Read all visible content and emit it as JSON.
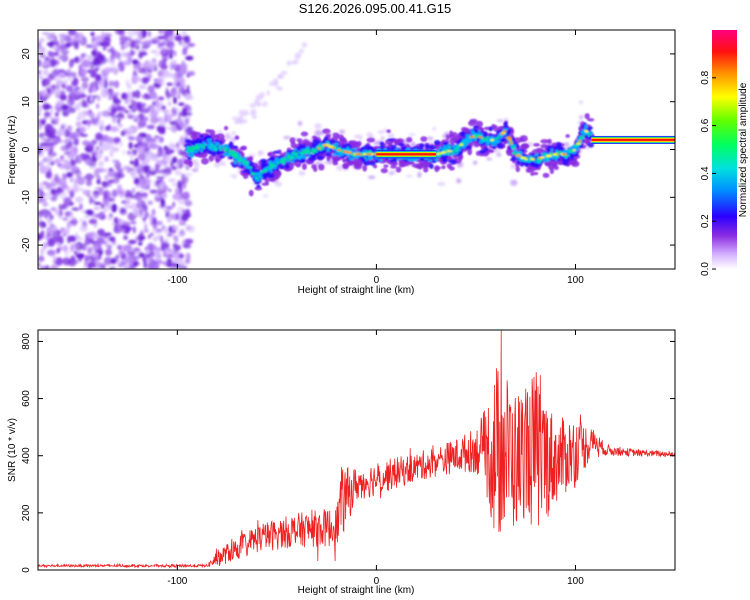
{
  "title": "S126.2026.095.00.41.G15",
  "chart_data": [
    {
      "type": "heatmap",
      "title": "S126.2026.095.00.41.G15",
      "xlabel": "Height of straight line (km)",
      "ylabel": "Frequency (Hz)",
      "xlim": [
        -170,
        150
      ],
      "ylim": [
        -25,
        25
      ],
      "xticks": [
        -100,
        0,
        100
      ],
      "yticks": [
        -20,
        -10,
        0,
        10,
        20
      ],
      "colorbar": {
        "label": "Normalized spectral amplitude",
        "range": [
          0,
          1
        ],
        "ticks": [
          0.0,
          0.2,
          0.4,
          0.6,
          0.8
        ],
        "colormap": "rainbow-white"
      },
      "ridge": {
        "x": [
          -95,
          -85,
          -75,
          -65,
          -60,
          -55,
          -50,
          -40,
          -30,
          -25,
          -20,
          -10,
          0,
          10,
          20,
          30,
          40,
          45,
          50,
          55,
          60,
          65,
          70,
          75,
          80,
          90,
          95,
          100,
          105,
          108,
          110,
          120,
          150
        ],
        "y": [
          0,
          1,
          0,
          -3,
          -6,
          -4,
          -3,
          -1,
          0,
          1,
          0,
          -1,
          -1,
          -1,
          -1,
          -1,
          0,
          2,
          3,
          2,
          2,
          4,
          -1,
          -2,
          -2,
          -1,
          -1,
          0,
          4,
          3,
          2,
          2,
          2
        ]
      },
      "saturated_segment_x": [
        0,
        30
      ],
      "stable_segment_x": [
        108,
        150
      ],
      "stable_frequency": 2
    },
    {
      "type": "line",
      "xlabel": "Height of straight line (km)",
      "ylabel": "SNR (10 * v/v)",
      "xlim": [
        -170,
        150
      ],
      "ylim": [
        0,
        840
      ],
      "xticks": [
        -100,
        0,
        100
      ],
      "yticks": [
        0,
        200,
        400,
        600,
        800
      ],
      "color": "#ee2020",
      "envelope": {
        "x": [
          -170,
          -85,
          -80,
          -60,
          -40,
          -20,
          -18,
          -10,
          0,
          20,
          30,
          40,
          50,
          55,
          60,
          65,
          70,
          75,
          80,
          90,
          100,
          110,
          115,
          130,
          150
        ],
        "mean": [
          15,
          15,
          40,
          110,
          140,
          150,
          230,
          300,
          320,
          360,
          380,
          400,
          420,
          420,
          400,
          420,
          380,
          420,
          410,
          380,
          420,
          450,
          420,
          410,
          405
        ],
        "amp": [
          4,
          5,
          30,
          50,
          60,
          70,
          130,
          60,
          60,
          50,
          55,
          60,
          80,
          150,
          330,
          280,
          250,
          230,
          300,
          150,
          120,
          40,
          20,
          12,
          10
        ]
      }
    }
  ]
}
